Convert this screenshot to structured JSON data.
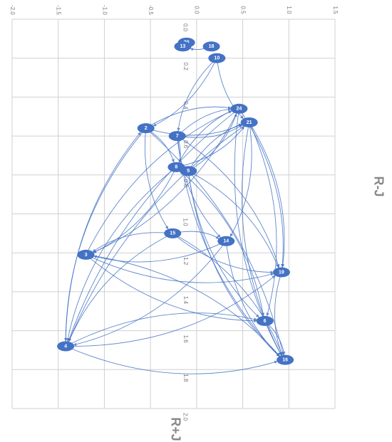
{
  "chart_data": {
    "type": "network",
    "xlabel": "R-J",
    "ylabel": "R+J",
    "color": "#4472c4",
    "grid": true,
    "xlim": [
      -2,
      1.5
    ],
    "ylim": [
      0,
      2
    ],
    "xticks": [
      {
        "value": -2,
        "label": "-2.0"
      },
      -1.5,
      {
        "value": -1,
        "label": "-1.0"
      },
      -0.5,
      {
        "value": 0,
        "label": "0.0"
      },
      0.5,
      {
        "value": 1,
        "label": "1.0"
      },
      1.5
    ],
    "yticks": [
      {
        "value": 0,
        "label": "0.0"
      },
      0.2,
      0.4,
      0.6,
      0.8,
      {
        "value": 1,
        "label": "1.0"
      },
      1.2,
      1.4,
      1.6,
      1.8,
      {
        "value": 2,
        "label": "2.0"
      }
    ],
    "labels": [
      "20",
      "13",
      "18",
      "10",
      "24",
      "21",
      "2",
      "7",
      "8",
      "5",
      "15",
      "14",
      "3",
      "19",
      "6",
      "4",
      "16"
    ],
    "x": [
      -0.11,
      -0.15,
      0.16,
      0.22,
      0.46,
      0.57,
      -0.55,
      -0.21,
      -0.22,
      -0.09,
      -0.26,
      0.32,
      -1.2,
      0.92,
      0.74,
      -1.42,
      0.96
    ],
    "y": [
      0.12,
      0.14,
      0.14,
      0.2,
      0.46,
      0.53,
      0.56,
      0.6,
      0.76,
      0.78,
      1.1,
      1.14,
      1.21,
      1.3,
      1.55,
      1.68,
      1.75
    ],
    "edges": [
      [
        "18",
        "13"
      ],
      [
        "10",
        "7"
      ],
      [
        "10",
        "2"
      ],
      [
        "10",
        "21"
      ],
      [
        "2",
        "24"
      ],
      [
        "2",
        "21"
      ],
      [
        "2",
        "8"
      ],
      [
        "2",
        "15"
      ],
      [
        "2",
        "16"
      ],
      [
        "2",
        "4"
      ],
      [
        "7",
        "24"
      ],
      [
        "7",
        "21"
      ],
      [
        "7",
        "8"
      ],
      [
        "7",
        "16"
      ],
      [
        "7",
        "19"
      ],
      [
        "7",
        "14"
      ],
      [
        "8",
        "24"
      ],
      [
        "8",
        "21"
      ],
      [
        "8",
        "3"
      ],
      [
        "8",
        "4"
      ],
      [
        "8",
        "6"
      ],
      [
        "5",
        "24"
      ],
      [
        "5",
        "21"
      ],
      [
        "5",
        "16"
      ],
      [
        "5",
        "19"
      ],
      [
        "5",
        "6"
      ],
      [
        "24",
        "3"
      ],
      [
        "24",
        "4"
      ],
      [
        "24",
        "19"
      ],
      [
        "24",
        "16"
      ],
      [
        "21",
        "19"
      ],
      [
        "21",
        "16"
      ],
      [
        "21",
        "14"
      ],
      [
        "21",
        "4"
      ],
      [
        "21",
        "6"
      ],
      [
        "15",
        "3"
      ],
      [
        "15",
        "14"
      ],
      [
        "15",
        "4"
      ],
      [
        "15",
        "16"
      ],
      [
        "15",
        "19"
      ],
      [
        "14",
        "3"
      ],
      [
        "14",
        "16"
      ],
      [
        "14",
        "4"
      ],
      [
        "3",
        "19"
      ],
      [
        "3",
        "16"
      ],
      [
        "3",
        "6"
      ],
      [
        "3",
        "24"
      ],
      [
        "4",
        "16"
      ],
      [
        "4",
        "6"
      ],
      [
        "4",
        "19"
      ],
      [
        "4",
        "2"
      ],
      [
        "19",
        "16"
      ],
      [
        "6",
        "16"
      ]
    ]
  }
}
